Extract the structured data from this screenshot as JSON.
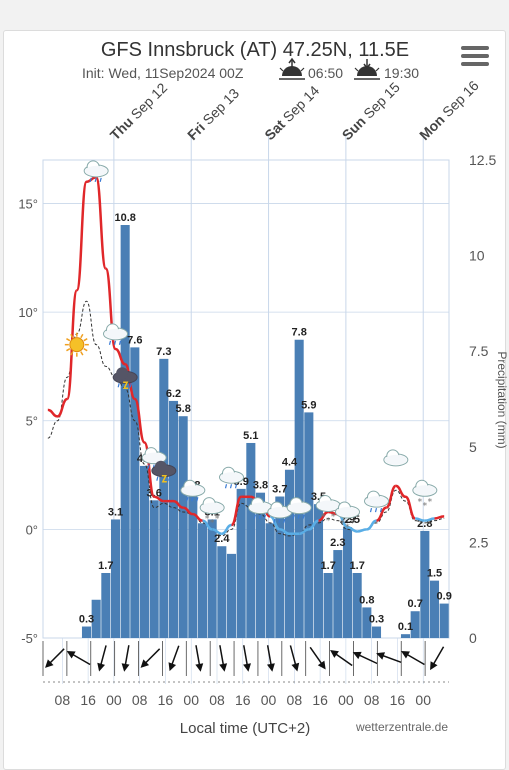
{
  "header": {
    "title": "GFS Innsbruck (AT) 47.25N, 11.5E",
    "init": "Init: Wed, 11Sep2024 00Z",
    "sunrise": "06:50",
    "sunset": "19:30"
  },
  "footer": {
    "xlabel": "Local time (UTC+2)",
    "credit": "wetterzentrale.de"
  },
  "colors": {
    "bars": "#4a7fb5",
    "temp_warm": "#e0272a",
    "temp_cold": "#5aaee6",
    "dewpoint": "#333333",
    "grid": "#c8d7ea"
  },
  "chart_data": {
    "type": "bar+line",
    "x_start": "2024-09-11 02:00",
    "step_hours": 3,
    "day_labels": [
      {
        "day": "Thu",
        "date": "Sep 12"
      },
      {
        "day": "Fri",
        "date": "Sep 13"
      },
      {
        "day": "Sat",
        "date": "Sep 14"
      },
      {
        "day": "Sun",
        "date": "Sep 15"
      },
      {
        "day": "Mon",
        "date": "Sep 16"
      }
    ],
    "x_tick_labels": [
      "08",
      "16",
      "00",
      "08",
      "16",
      "00",
      "08",
      "16",
      "00",
      "08",
      "16",
      "00",
      "08",
      "16",
      "00"
    ],
    "y_left": {
      "unit": "°",
      "range": [
        -5,
        17
      ],
      "ticks": [
        "15°",
        "10°",
        "5°",
        "0°",
        "-5°"
      ]
    },
    "y_right": {
      "label": "Precipitation (mm)",
      "range": [
        0,
        12.5
      ],
      "ticks": [
        "12.5",
        "10",
        "7.5",
        "5",
        "2.5",
        "0"
      ]
    },
    "precipitation_mm": [
      0,
      0,
      0,
      0,
      0.3,
      1.0,
      1.7,
      3.1,
      10.8,
      7.6,
      4.5,
      3.6,
      7.3,
      6.2,
      5.8,
      3.8,
      3.0,
      3.1,
      2.4,
      2.2,
      3.9,
      5.1,
      3.8,
      3.0,
      3.7,
      4.4,
      7.8,
      5.9,
      3.5,
      1.7,
      2.3,
      2.9,
      1.7,
      0.8,
      0.3,
      0,
      0,
      0.1,
      0.7,
      2.8,
      1.5,
      0.9
    ],
    "precipitation_labels": [
      {
        "i": 4,
        "text": "0.3"
      },
      {
        "i": 6,
        "text": "1.7"
      },
      {
        "i": 7,
        "text": "3.1"
      },
      {
        "i": 8,
        "text": "10.8"
      },
      {
        "i": 9,
        "text": "7.6"
      },
      {
        "i": 10,
        "text": "4.5"
      },
      {
        "i": 11,
        "text": "3.6"
      },
      {
        "i": 12,
        "text": "7.3"
      },
      {
        "i": 13,
        "text": "6.2"
      },
      {
        "i": 14,
        "text": "5.8"
      },
      {
        "i": 15,
        "text": "3.8"
      },
      {
        "i": 17,
        "text": "3.1"
      },
      {
        "i": 18,
        "text": "2.4"
      },
      {
        "i": 20,
        "text": "3.9"
      },
      {
        "i": 21,
        "text": "5.1"
      },
      {
        "i": 22,
        "text": "3.8"
      },
      {
        "i": 24,
        "text": "3.7"
      },
      {
        "i": 25,
        "text": "4.4"
      },
      {
        "i": 26,
        "text": "7.8"
      },
      {
        "i": 27,
        "text": "5.9"
      },
      {
        "i": 28,
        "text": "3.5"
      },
      {
        "i": 29,
        "text": "1.7"
      },
      {
        "i": 30,
        "text": "2.3"
      },
      {
        "i": 31,
        "text": "2.9"
      },
      {
        "i": 31.5,
        "text": "2.5"
      },
      {
        "i": 32,
        "text": "1.7"
      },
      {
        "i": 33,
        "text": "0.8"
      },
      {
        "i": 34,
        "text": "0.3"
      },
      {
        "i": 37,
        "text": "0.1"
      },
      {
        "i": 38,
        "text": "0.7"
      },
      {
        "i": 39,
        "text": "2.8"
      },
      {
        "i": 40,
        "text": "1.5"
      },
      {
        "i": 41,
        "text": "0.9"
      }
    ],
    "temperature_c": [
      5.5,
      5.2,
      6.0,
      11.0,
      16.0,
      16.2,
      12.0,
      8.3,
      7.6,
      6.0,
      4.0,
      1.5,
      1.3,
      1.3,
      1.0,
      0.7,
      0.4,
      0.0,
      -0.2,
      0.2,
      1.5,
      1.5,
      1.2,
      0.6,
      0.0,
      -0.2,
      -0.2,
      0.0,
      0.4,
      0.8,
      0.7,
      0.1,
      -0.1,
      0.0,
      0.4,
      1.0,
      2.0,
      1.5,
      0.5,
      0.4,
      0.5,
      0.6
    ],
    "temperature_cold_threshold": 0.5,
    "dewpoint_c": [
      4.2,
      5.0,
      7.0,
      9.0,
      10.5,
      8.5,
      7.5,
      7.0,
      6.5,
      5.0,
      3.0,
      1.0,
      1.2,
      1.0,
      0.8,
      0.7,
      0.3,
      0.0,
      -0.3,
      0.0,
      1.2,
      1.0,
      0.7,
      0.3,
      -0.2,
      -0.3,
      -0.2,
      0.2,
      0.3,
      0.5,
      0.4,
      0.0,
      -0.1,
      0.0,
      0.3,
      0.8,
      1.8,
      1.3,
      0.4,
      0.3,
      0.4,
      0.5
    ],
    "weather_icons": [
      {
        "i": 5,
        "temp": 16.5,
        "icon": "rain-cloud-icon"
      },
      {
        "i": 3,
        "temp": 8.5,
        "icon": "sun-icon"
      },
      {
        "i": 7,
        "temp": 9.0,
        "icon": "rain-cloud-icon"
      },
      {
        "i": 8,
        "temp": 7.0,
        "icon": "thunder-cloud-icon"
      },
      {
        "i": 11,
        "temp": 3.3,
        "icon": "rain-cloud-icon"
      },
      {
        "i": 12,
        "temp": 2.7,
        "icon": "thunder-cloud-icon"
      },
      {
        "i": 15,
        "temp": 1.8,
        "icon": "rain-cloud-icon"
      },
      {
        "i": 17,
        "temp": 1.0,
        "icon": "snow-cloud-icon"
      },
      {
        "i": 19,
        "temp": 2.4,
        "icon": "rain-cloud-icon"
      },
      {
        "i": 22,
        "temp": 1.0,
        "icon": "rain-cloud-icon"
      },
      {
        "i": 24,
        "temp": 0.8,
        "icon": "rain-cloud-icon"
      },
      {
        "i": 26,
        "temp": 1.0,
        "icon": "rain-cloud-icon"
      },
      {
        "i": 29,
        "temp": 1.1,
        "icon": "snow-cloud-icon"
      },
      {
        "i": 31,
        "temp": 0.8,
        "icon": "snow-cloud-icon"
      },
      {
        "i": 34,
        "temp": 1.3,
        "icon": "rain-cloud-icon"
      },
      {
        "i": 36,
        "temp": 3.2,
        "icon": "cloud-icon"
      },
      {
        "i": 39,
        "temp": 1.8,
        "icon": "snow-cloud-icon"
      }
    ],
    "wind_directions_deg": [
      225,
      300,
      195,
      190,
      225,
      200,
      170,
      170,
      170,
      170,
      165,
      145,
      305,
      295,
      290,
      300,
      210
    ]
  }
}
